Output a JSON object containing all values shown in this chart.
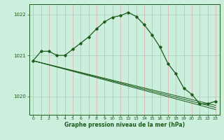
{
  "title": "Graphe pression niveau de la mer (hPa)",
  "bg_color": "#cceedd",
  "grid_color_v": "#ddaaaa",
  "grid_color_h": "#aaccbb",
  "line_color": "#1a5c1a",
  "xlim": [
    -0.5,
    23.5
  ],
  "ylim": [
    1019.55,
    1022.25
  ],
  "yticks": [
    1020,
    1021,
    1022
  ],
  "xticks": [
    0,
    1,
    2,
    3,
    4,
    5,
    6,
    7,
    8,
    9,
    10,
    11,
    12,
    13,
    14,
    15,
    16,
    17,
    18,
    19,
    20,
    21,
    22,
    23
  ],
  "series1_x": [
    0,
    1,
    2,
    3,
    4,
    5,
    6,
    7,
    8,
    9,
    10,
    11,
    12,
    13,
    14,
    15,
    16,
    17,
    18,
    19,
    20,
    21,
    22,
    23
  ],
  "series1_y": [
    1020.87,
    1021.1,
    1021.1,
    1021.0,
    1021.0,
    1021.15,
    1021.3,
    1021.45,
    1021.65,
    1021.82,
    1021.93,
    1021.97,
    1022.05,
    1021.95,
    1021.75,
    1021.5,
    1021.2,
    1020.8,
    1020.55,
    1020.2,
    1020.05,
    1019.82,
    1019.82,
    1019.88
  ],
  "trend1_x": [
    0,
    23
  ],
  "trend1_y": [
    1020.87,
    1019.68
  ],
  "trend2_x": [
    0,
    23
  ],
  "trend2_y": [
    1020.87,
    1019.78
  ],
  "trend3_x": [
    0,
    23
  ],
  "trend3_y": [
    1020.87,
    1019.73
  ]
}
